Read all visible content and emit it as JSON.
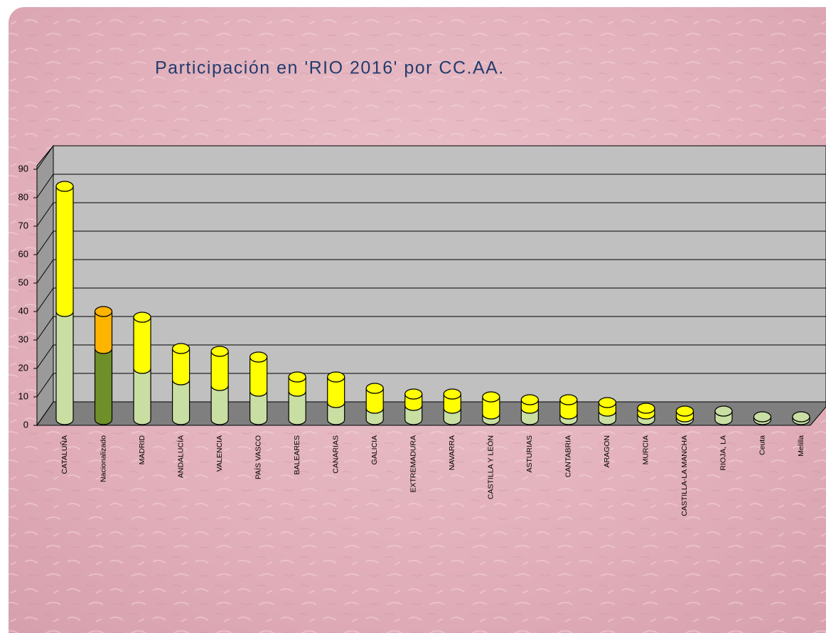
{
  "chart_data": {
    "type": "bar3d_stacked_cylinder",
    "title": "Participación en 'RIO 2016' por CC.AA.",
    "categories": [
      "CATALUÑA",
      "Nacionalizado",
      "MADRID",
      "ANDALUCÍA",
      "VALENCIA",
      "PAÍS VASCO",
      "BALEARES",
      "CANARIAS",
      "GALICIA",
      "EXTREMADURA",
      "NAVARRA",
      "CASTILLA Y LEÓN",
      "ASTURIAS",
      "CANTABRIA",
      "ARAGON",
      "MURCIA",
      "CASTILLA-LA MANCHA",
      "RIOJA, LA",
      "Ceuta",
      "Melilla"
    ],
    "series": [
      {
        "color": "#c9dea3",
        "colors": [
          "#c9dea3",
          "#6f8f2a",
          "#c9dea3",
          "#c9dea3",
          "#c9dea3",
          "#c9dea3",
          "#c9dea3",
          "#c9dea3",
          "#c9dea3",
          "#c9dea3",
          "#c9dea3",
          "#c9dea3",
          "#c9dea3",
          "#c9dea3",
          "#c9dea3",
          "#c9dea3",
          "#c9dea3",
          "#c9dea3",
          "#c9dea3",
          "#c9dea3"
        ],
        "values": [
          38,
          25,
          18,
          14,
          12,
          10,
          10,
          6,
          4,
          5,
          4,
          2,
          4,
          2,
          3,
          2,
          1,
          3,
          1,
          1
        ]
      },
      {
        "color": "#ffff00",
        "colors": [
          "#ffff00",
          "#ffb400",
          "#ffff00",
          "#ffff00",
          "#ffff00",
          "#ffff00",
          "#ffff00",
          "#ffff00",
          "#ffff00",
          "#ffff00",
          "#ffff00",
          "#ffff00",
          "#ffff00",
          "#ffff00",
          "#ffff00",
          "#ffff00",
          "#ffff00",
          "#ffff00",
          "#ffff00",
          "#ffff00"
        ],
        "values": [
          44,
          13,
          18,
          11,
          12,
          12,
          5,
          9,
          7,
          4,
          5,
          6,
          3,
          5,
          3,
          2,
          2,
          0,
          0,
          0
        ]
      }
    ],
    "ylim": [
      0,
      90
    ],
    "yticks": [
      0,
      10,
      20,
      30,
      40,
      50,
      60,
      70,
      80,
      90
    ],
    "grid": true
  }
}
